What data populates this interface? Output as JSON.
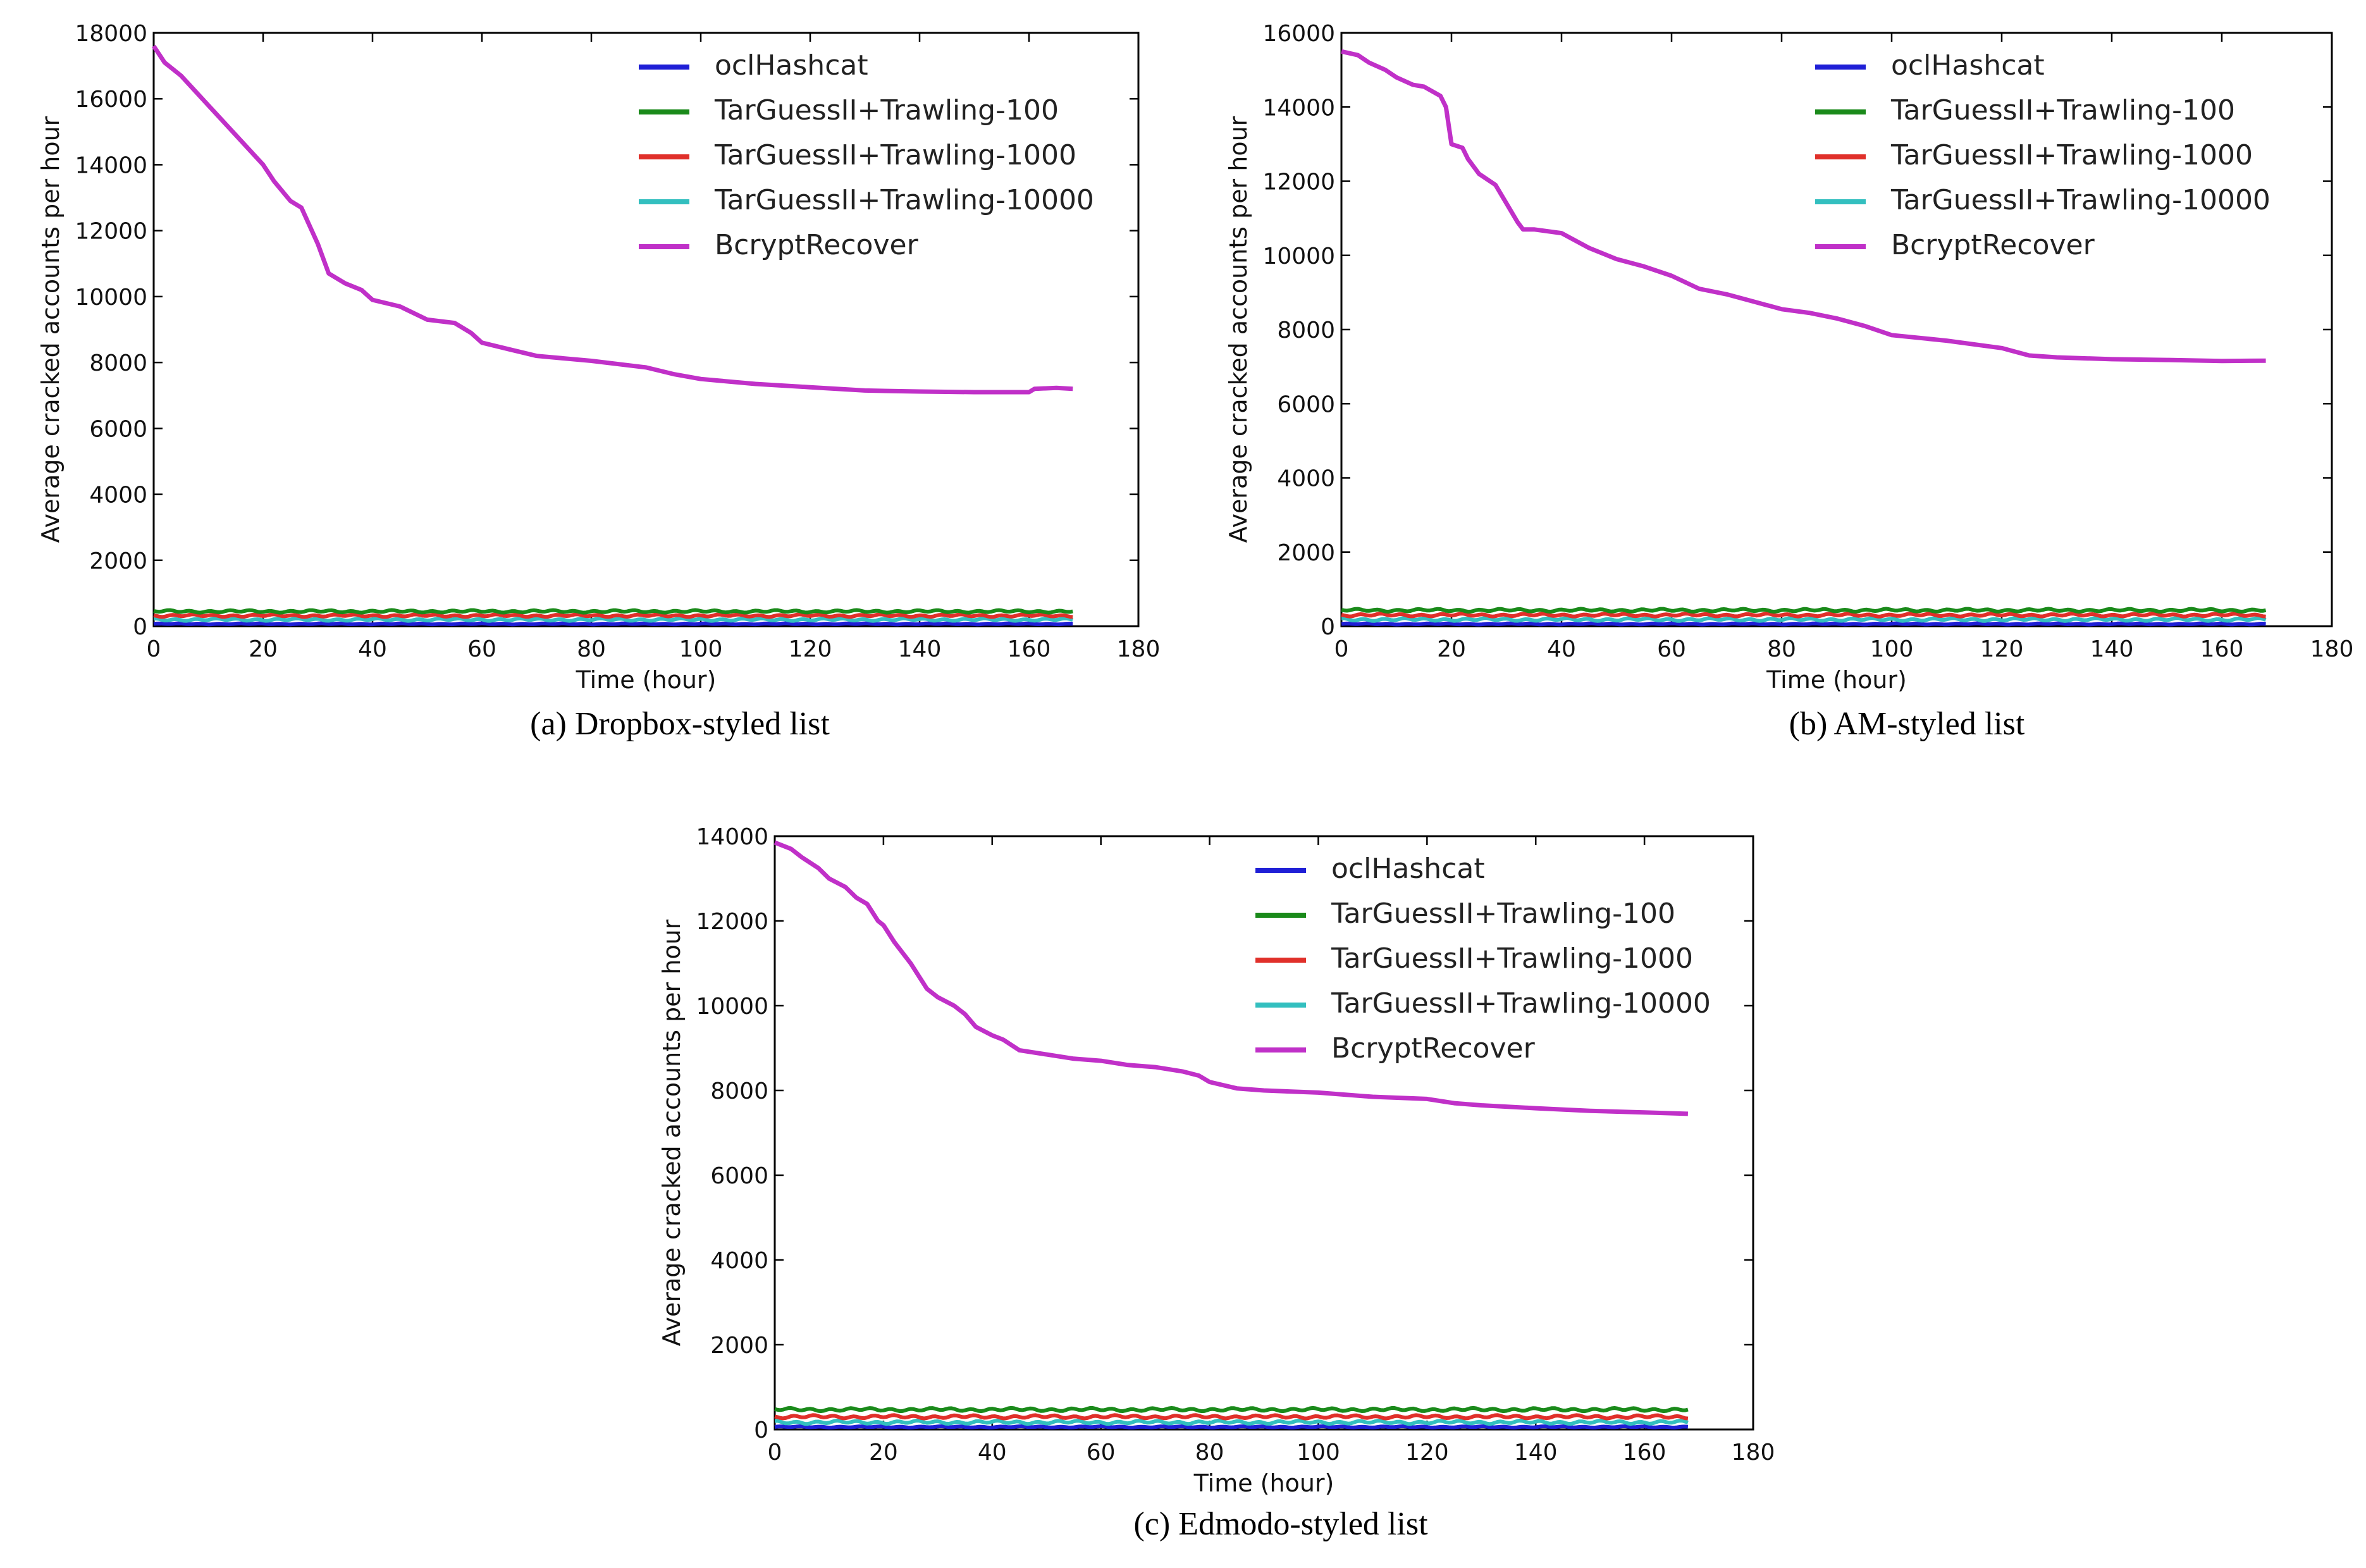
{
  "legend_labels": [
    "oclHashcat",
    "TarGuessII+Trawling-100",
    "TarGuessII+Trawling-1000",
    "TarGuessII+Trawling-10000",
    "BcryptRecover"
  ],
  "colors": {
    "oclHashcat": "#1f1fd6",
    "TarGuessII+Trawling-100": "#1a8a1a",
    "TarGuessII+Trawling-1000": "#e0302a",
    "TarGuessII+Trawling-10000": "#33bfbf",
    "BcryptRecover": "#c030c8"
  },
  "chart_data": [
    {
      "type": "line",
      "caption": "(a) Dropbox-styled list",
      "xlabel": "Time (hour)",
      "ylabel": "Average cracked accounts per hour",
      "xlim": [
        0,
        180
      ],
      "ylim": [
        0,
        18000
      ],
      "xticks": [
        "0",
        "20",
        "40",
        "60",
        "80",
        "100",
        "120",
        "140",
        "160",
        "180"
      ],
      "yticks": [
        "0",
        "2000",
        "4000",
        "6000",
        "8000",
        "10000",
        "12000",
        "14000",
        "16000",
        "18000"
      ],
      "series": [
        {
          "name": "BcryptRecover",
          "x": [
            0,
            2,
            5,
            10,
            15,
            20,
            22,
            25,
            27,
            30,
            32,
            35,
            38,
            40,
            45,
            50,
            55,
            58,
            60,
            65,
            70,
            80,
            90,
            95,
            100,
            110,
            120,
            130,
            140,
            150,
            160,
            161,
            165,
            168
          ],
          "y": [
            17600,
            17100,
            16700,
            15800,
            14900,
            14000,
            13500,
            12900,
            12700,
            11600,
            10700,
            10400,
            10200,
            9900,
            9700,
            9300,
            9200,
            8900,
            8600,
            8400,
            8200,
            8050,
            7850,
            7650,
            7500,
            7350,
            7250,
            7150,
            7120,
            7100,
            7100,
            7200,
            7230,
            7200
          ]
        },
        {
          "name": "TarGuessII+Trawling-100",
          "x": [
            0,
            168
          ],
          "y": [
            450,
            450
          ]
        },
        {
          "name": "TarGuessII+Trawling-1000",
          "x": [
            0,
            168
          ],
          "y": [
            320,
            320
          ]
        },
        {
          "name": "TarGuessII+Trawling-10000",
          "x": [
            0,
            168
          ],
          "y": [
            200,
            200
          ]
        },
        {
          "name": "oclHashcat",
          "x": [
            0,
            168
          ],
          "y": [
            70,
            70
          ]
        }
      ]
    },
    {
      "type": "line",
      "caption": "(b) AM-styled list",
      "xlabel": "Time (hour)",
      "ylabel": "Average cracked accounts per hour",
      "xlim": [
        0,
        180
      ],
      "ylim": [
        0,
        16000
      ],
      "xticks": [
        "0",
        "20",
        "40",
        "60",
        "80",
        "100",
        "120",
        "140",
        "160",
        "180"
      ],
      "yticks": [
        "0",
        "2000",
        "4000",
        "6000",
        "8000",
        "10000",
        "12000",
        "14000",
        "16000"
      ],
      "series": [
        {
          "name": "BcryptRecover",
          "x": [
            0,
            3,
            5,
            8,
            10,
            13,
            15,
            18,
            19,
            20,
            22,
            23,
            25,
            28,
            30,
            32,
            33,
            35,
            40,
            45,
            50,
            55,
            60,
            65,
            70,
            75,
            80,
            85,
            90,
            95,
            100,
            110,
            120,
            125,
            130,
            140,
            150,
            160,
            168
          ],
          "y": [
            15500,
            15400,
            15200,
            15000,
            14800,
            14600,
            14550,
            14300,
            14000,
            13000,
            12900,
            12600,
            12200,
            11900,
            11400,
            10900,
            10700,
            10700,
            10600,
            10200,
            9900,
            9700,
            9450,
            9100,
            8950,
            8750,
            8550,
            8450,
            8300,
            8100,
            7850,
            7700,
            7500,
            7300,
            7250,
            7200,
            7180,
            7150,
            7160
          ]
        },
        {
          "name": "TarGuessII+Trawling-100",
          "x": [
            0,
            168
          ],
          "y": [
            430,
            430
          ]
        },
        {
          "name": "TarGuessII+Trawling-1000",
          "x": [
            0,
            168
          ],
          "y": [
            300,
            300
          ]
        },
        {
          "name": "TarGuessII+Trawling-10000",
          "x": [
            0,
            168
          ],
          "y": [
            180,
            180
          ]
        },
        {
          "name": "oclHashcat",
          "x": [
            0,
            168
          ],
          "y": [
            60,
            60
          ]
        }
      ]
    },
    {
      "type": "line",
      "caption": "(c) Edmodo-styled list",
      "xlabel": "Time (hour)",
      "ylabel": "Average cracked accounts per hour",
      "xlim": [
        0,
        180
      ],
      "ylim": [
        0,
        14000
      ],
      "xticks": [
        "0",
        "20",
        "40",
        "60",
        "80",
        "100",
        "120",
        "140",
        "160",
        "180"
      ],
      "yticks": [
        "0",
        "2000",
        "4000",
        "6000",
        "8000",
        "10000",
        "12000",
        "14000"
      ],
      "series": [
        {
          "name": "BcryptRecover",
          "x": [
            0,
            3,
            5,
            8,
            10,
            13,
            15,
            17,
            19,
            20,
            22,
            25,
            28,
            30,
            33,
            35,
            37,
            40,
            42,
            45,
            50,
            55,
            60,
            65,
            70,
            75,
            78,
            80,
            85,
            90,
            100,
            110,
            120,
            125,
            130,
            140,
            150,
            160,
            168
          ],
          "y": [
            13850,
            13700,
            13500,
            13250,
            13000,
            12800,
            12550,
            12400,
            12000,
            11900,
            11500,
            11000,
            10400,
            10200,
            10000,
            9800,
            9500,
            9300,
            9200,
            8950,
            8850,
            8750,
            8700,
            8600,
            8550,
            8450,
            8350,
            8200,
            8050,
            8000,
            7950,
            7850,
            7800,
            7700,
            7650,
            7580,
            7520,
            7480,
            7450
          ]
        },
        {
          "name": "TarGuessII+Trawling-100",
          "x": [
            0,
            168
          ],
          "y": [
            470,
            470
          ]
        },
        {
          "name": "TarGuessII+Trawling-1000",
          "x": [
            0,
            168
          ],
          "y": [
            300,
            300
          ]
        },
        {
          "name": "TarGuessII+Trawling-10000",
          "x": [
            0,
            168
          ],
          "y": [
            170,
            170
          ]
        },
        {
          "name": "oclHashcat",
          "x": [
            0,
            168
          ],
          "y": [
            60,
            60
          ]
        }
      ]
    }
  ]
}
